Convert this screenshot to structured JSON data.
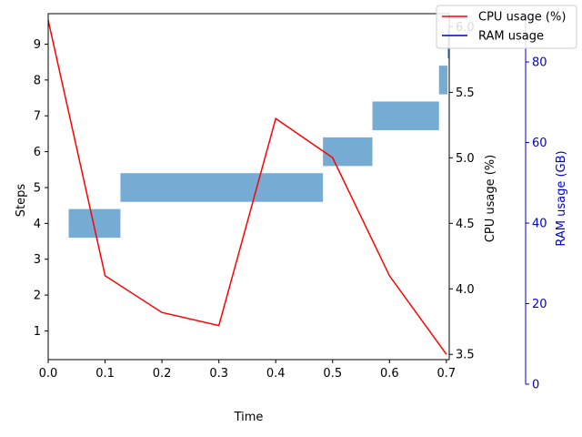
{
  "chart_data": {
    "type": "combo",
    "xlabel": "Time",
    "xlim": [
      0,
      0.705
    ],
    "x_ticks": [
      "0.0",
      "0.1",
      "0.2",
      "0.3",
      "0.4",
      "0.5",
      "0.6",
      "0.7"
    ],
    "steps_axis": {
      "label": "Steps",
      "ylim": [
        0.2,
        9.85
      ],
      "ticks": [
        "1",
        "2",
        "3",
        "4",
        "5",
        "6",
        "7",
        "8",
        "9"
      ]
    },
    "cpu_axis": {
      "label": "CPU usage (%)",
      "ylim": [
        3.46,
        6.1
      ],
      "ticks": [
        "3.5",
        "4.0",
        "4.5",
        "5.0",
        "5.5",
        "6.0"
      ]
    },
    "ram_axis": {
      "label": "RAM usage (GB)",
      "ylim": [
        0,
        92
      ],
      "ticks": [
        "0",
        "20",
        "40",
        "60",
        "80"
      ],
      "color": "#0000cc"
    },
    "step_bars": {
      "color": "#76acd4",
      "bars": [
        {
          "step": 4,
          "start": 0.036,
          "end": 0.127
        },
        {
          "step": 5,
          "start": 0.127,
          "end": 0.483
        },
        {
          "step": 6,
          "start": 0.483,
          "end": 0.57
        },
        {
          "step": 7,
          "start": 0.57,
          "end": 0.687
        },
        {
          "step": 8,
          "start": 0.687,
          "end": 0.702
        },
        {
          "step": 9,
          "start": 0.702,
          "end": 0.705
        }
      ]
    },
    "series": [
      {
        "name": "CPU usage (%)",
        "color": "#ff0000",
        "x": [
          0.0,
          0.1,
          0.2,
          0.3,
          0.4,
          0.5,
          0.6,
          0.7
        ],
        "values": [
          6.05,
          4.1,
          3.82,
          3.72,
          5.3,
          5.0,
          4.1,
          3.5
        ]
      }
    ],
    "legend": {
      "position": "top-right",
      "entries": [
        {
          "label": "CPU usage (%)",
          "color": "#ff0000"
        },
        {
          "label": "RAM usage",
          "color": "#0000cc"
        }
      ]
    }
  }
}
